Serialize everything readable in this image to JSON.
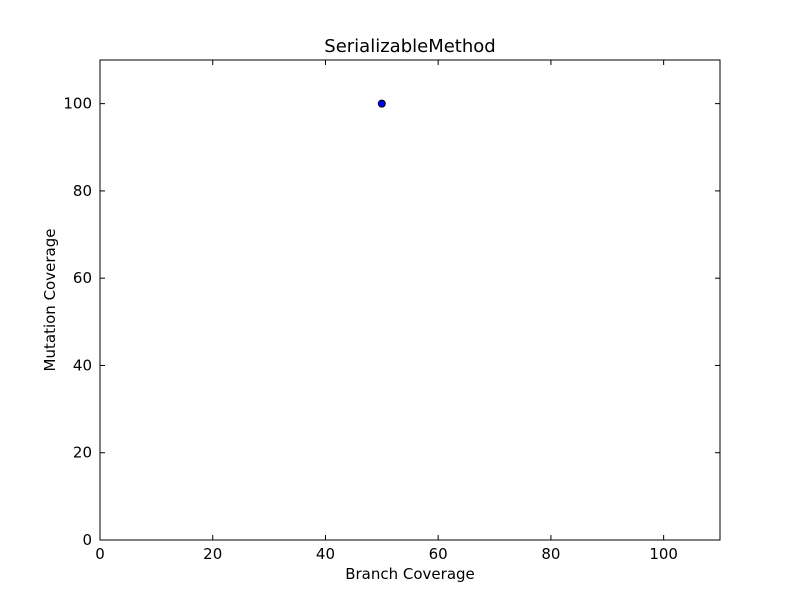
{
  "chart_data": {
    "type": "scatter",
    "title": "SerializableMethod",
    "xlabel": "Branch Coverage",
    "ylabel": "Mutation Coverage",
    "xlim": [
      0,
      110
    ],
    "ylim": [
      0,
      110
    ],
    "xticks": [
      0,
      20,
      40,
      60,
      80,
      100
    ],
    "yticks": [
      0,
      20,
      40,
      60,
      80,
      100
    ],
    "grid": false,
    "point_color": "#0000ff",
    "series": [
      {
        "points": [
          {
            "x": 50,
            "y": 100
          }
        ]
      }
    ]
  }
}
